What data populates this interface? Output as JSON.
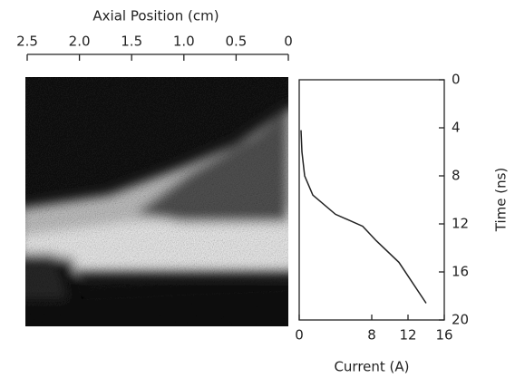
{
  "chart_data": [
    {
      "type": "image",
      "xlabel": "Axial Position (cm)",
      "xlim": [
        2.5,
        0
      ],
      "xticks": [
        2.5,
        {
          "value": 2,
          "label": "2.0"
        },
        1.5,
        {
          "value": 1,
          "label": "1.0"
        },
        0.5,
        0
      ]
    },
    {
      "type": "line",
      "xlabel": "Current (A)",
      "ylabel": "Time (ns)",
      "x": [
        0.2,
        0.3,
        0.6,
        1.5,
        4,
        7,
        8.5,
        11,
        14
      ],
      "values": [
        4.2,
        6,
        8,
        9.6,
        11.2,
        12.2,
        13.4,
        15.2,
        18.6
      ],
      "color": "#222222",
      "xlim": [
        0,
        16
      ],
      "xticks": [
        0,
        8,
        12,
        16
      ],
      "ylim": [
        20,
        0
      ],
      "yticks": [
        0,
        4,
        8,
        12,
        16,
        20
      ],
      "y_axis_side": "right"
    }
  ]
}
